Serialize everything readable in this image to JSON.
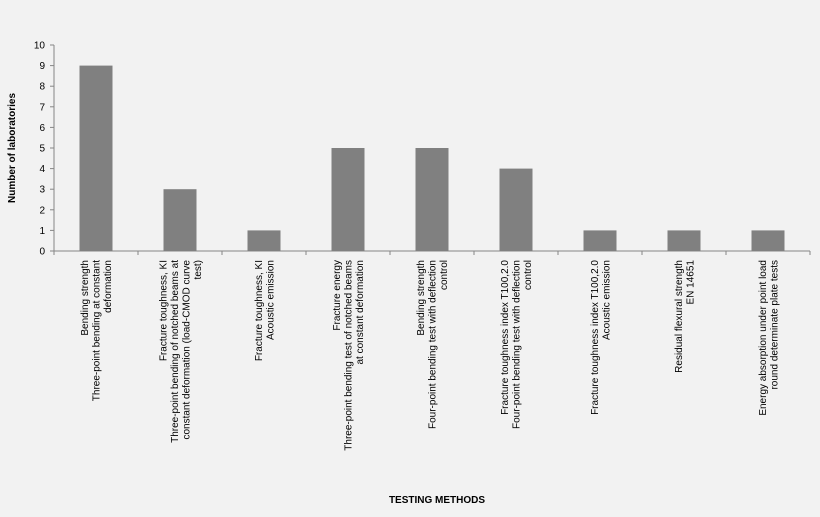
{
  "chart_data": {
    "type": "bar",
    "x_label": "TESTING METHODS",
    "y_label": "Number of laboratories",
    "categories": [
      [
        "Bending strength",
        "Three-point bending at constant",
        "deformation"
      ],
      [
        "Fracture toughness, KI",
        "Three-point bending of notched beams at",
        "constant deformation (load-CMOD curve",
        "test)"
      ],
      [
        "Fracture toughness, KI",
        "Acoustic emission"
      ],
      [
        "Fracture energy",
        "Three-point bending test of notched beams",
        "at constant deformation"
      ],
      [
        "Bending strength",
        "Four-point bending test with deflection",
        "control"
      ],
      [
        "Fracture toughness index T100,2.0",
        "Four-point bending test with deflection",
        "control"
      ],
      [
        "Fracture toughness index T100,2.0",
        "Acoustic emission"
      ],
      [
        "Residual flexural strength",
        "EN 14651"
      ],
      [
        "Energy absorption under point load",
        "round determinate plate tests"
      ]
    ],
    "values": [
      9,
      3,
      1,
      5,
      5,
      4,
      1,
      1,
      1
    ],
    "color": "#808080",
    "ylim": [
      0,
      10
    ],
    "yticks": [
      0,
      1,
      2,
      3,
      4,
      5,
      6,
      7,
      8,
      9,
      10
    ],
    "grid": false
  }
}
